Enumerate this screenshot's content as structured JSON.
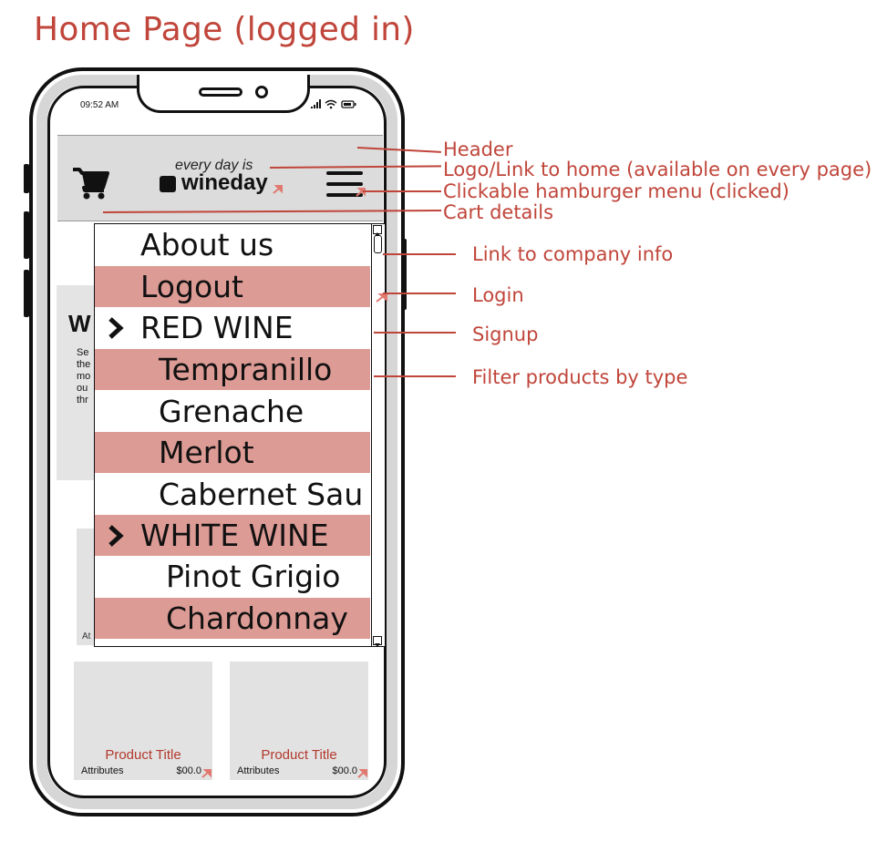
{
  "page_title": "Home Page (logged in)",
  "status_bar": {
    "time": "09:52 AM",
    "icons": "..ıl ᯤ ▭"
  },
  "header": {
    "tagline": "every day is",
    "logo": "wineday"
  },
  "background_content": {
    "heading_initial": "W",
    "text_lines": [
      "Se",
      "the",
      "mo",
      "ou",
      "thr"
    ],
    "partial_attr": "At"
  },
  "menu": {
    "items": [
      {
        "label": "About us",
        "indent": 1,
        "shaded": false,
        "chevron": false
      },
      {
        "label": "Logout",
        "indent": 1,
        "shaded": true,
        "chevron": false
      },
      {
        "label": "RED WINE",
        "indent": 1,
        "shaded": false,
        "chevron": true
      },
      {
        "label": "Tempranillo",
        "indent": 2,
        "shaded": true,
        "chevron": false
      },
      {
        "label": "Grenache",
        "indent": 2,
        "shaded": false,
        "chevron": false
      },
      {
        "label": "Merlot",
        "indent": 2,
        "shaded": true,
        "chevron": false
      },
      {
        "label": "Cabernet Sau",
        "indent": 2,
        "shaded": false,
        "chevron": false
      },
      {
        "label": "WHITE WINE",
        "indent": 1,
        "shaded": true,
        "chevron": true
      },
      {
        "label": "Pinot Grigio",
        "indent": 3,
        "shaded": false,
        "chevron": false
      },
      {
        "label": "Chardonnay",
        "indent": 3,
        "shaded": true,
        "chevron": false
      }
    ]
  },
  "products": [
    {
      "title": "Product Title",
      "attributes": "Attributes",
      "price": "$00.0"
    },
    {
      "title": "Product Title",
      "attributes": "Attributes",
      "price": "$00.0"
    }
  ],
  "annotations": [
    "Header",
    "Logo/Link to home (available on every page)",
    "Clickable hamburger menu (clicked)",
    "Cart details",
    "Link to company info",
    "Login",
    "Signup",
    "Filter products by type"
  ],
  "colors": {
    "annotation": "#c0453a",
    "menu_shade": "#dd9b95",
    "header_bg": "#dcdcdc"
  }
}
